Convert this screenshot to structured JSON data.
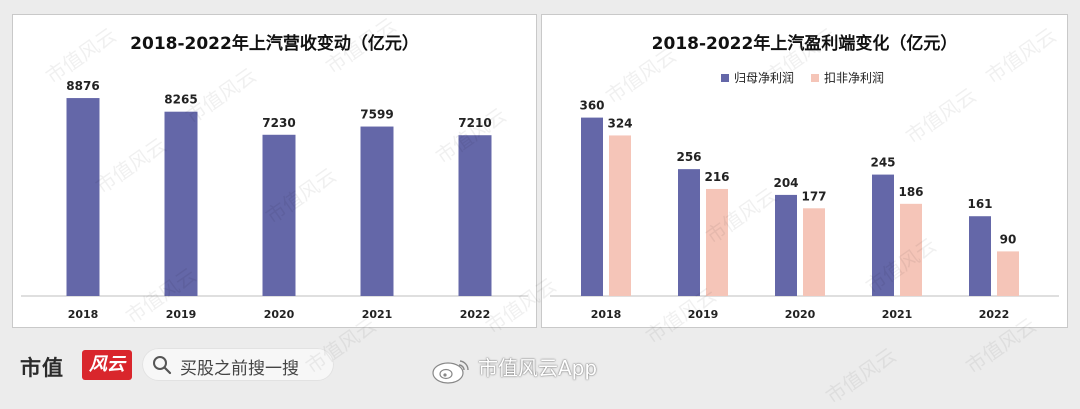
{
  "watermark": "市值风云",
  "footer": {
    "brand": "市值",
    "search_text": "买股之前搜一搜",
    "weibo_text": "市值风云App"
  },
  "colors": {
    "primary_bar": "#6467a8",
    "secondary_bar": "#f5c5b8",
    "axis": "#bfbfbf"
  },
  "chart_data": [
    {
      "type": "bar",
      "title": "2018-2022年上汽营收变动（亿元）",
      "categories": [
        "2018",
        "2019",
        "2020",
        "2021",
        "2022"
      ],
      "values": [
        8876,
        8265,
        7230,
        7599,
        7210
      ],
      "ylim": [
        0,
        10000
      ]
    },
    {
      "type": "bar",
      "title": "2018-2022年上汽盈利端变化（亿元）",
      "categories": [
        "2018",
        "2019",
        "2020",
        "2021",
        "2022"
      ],
      "series": [
        {
          "name": "归母净利润",
          "values": [
            360,
            256,
            204,
            245,
            161
          ]
        },
        {
          "name": "扣非净利润",
          "values": [
            324,
            216,
            177,
            186,
            90
          ]
        }
      ],
      "legend_position": "top-left",
      "ylim": [
        0,
        450
      ]
    }
  ]
}
